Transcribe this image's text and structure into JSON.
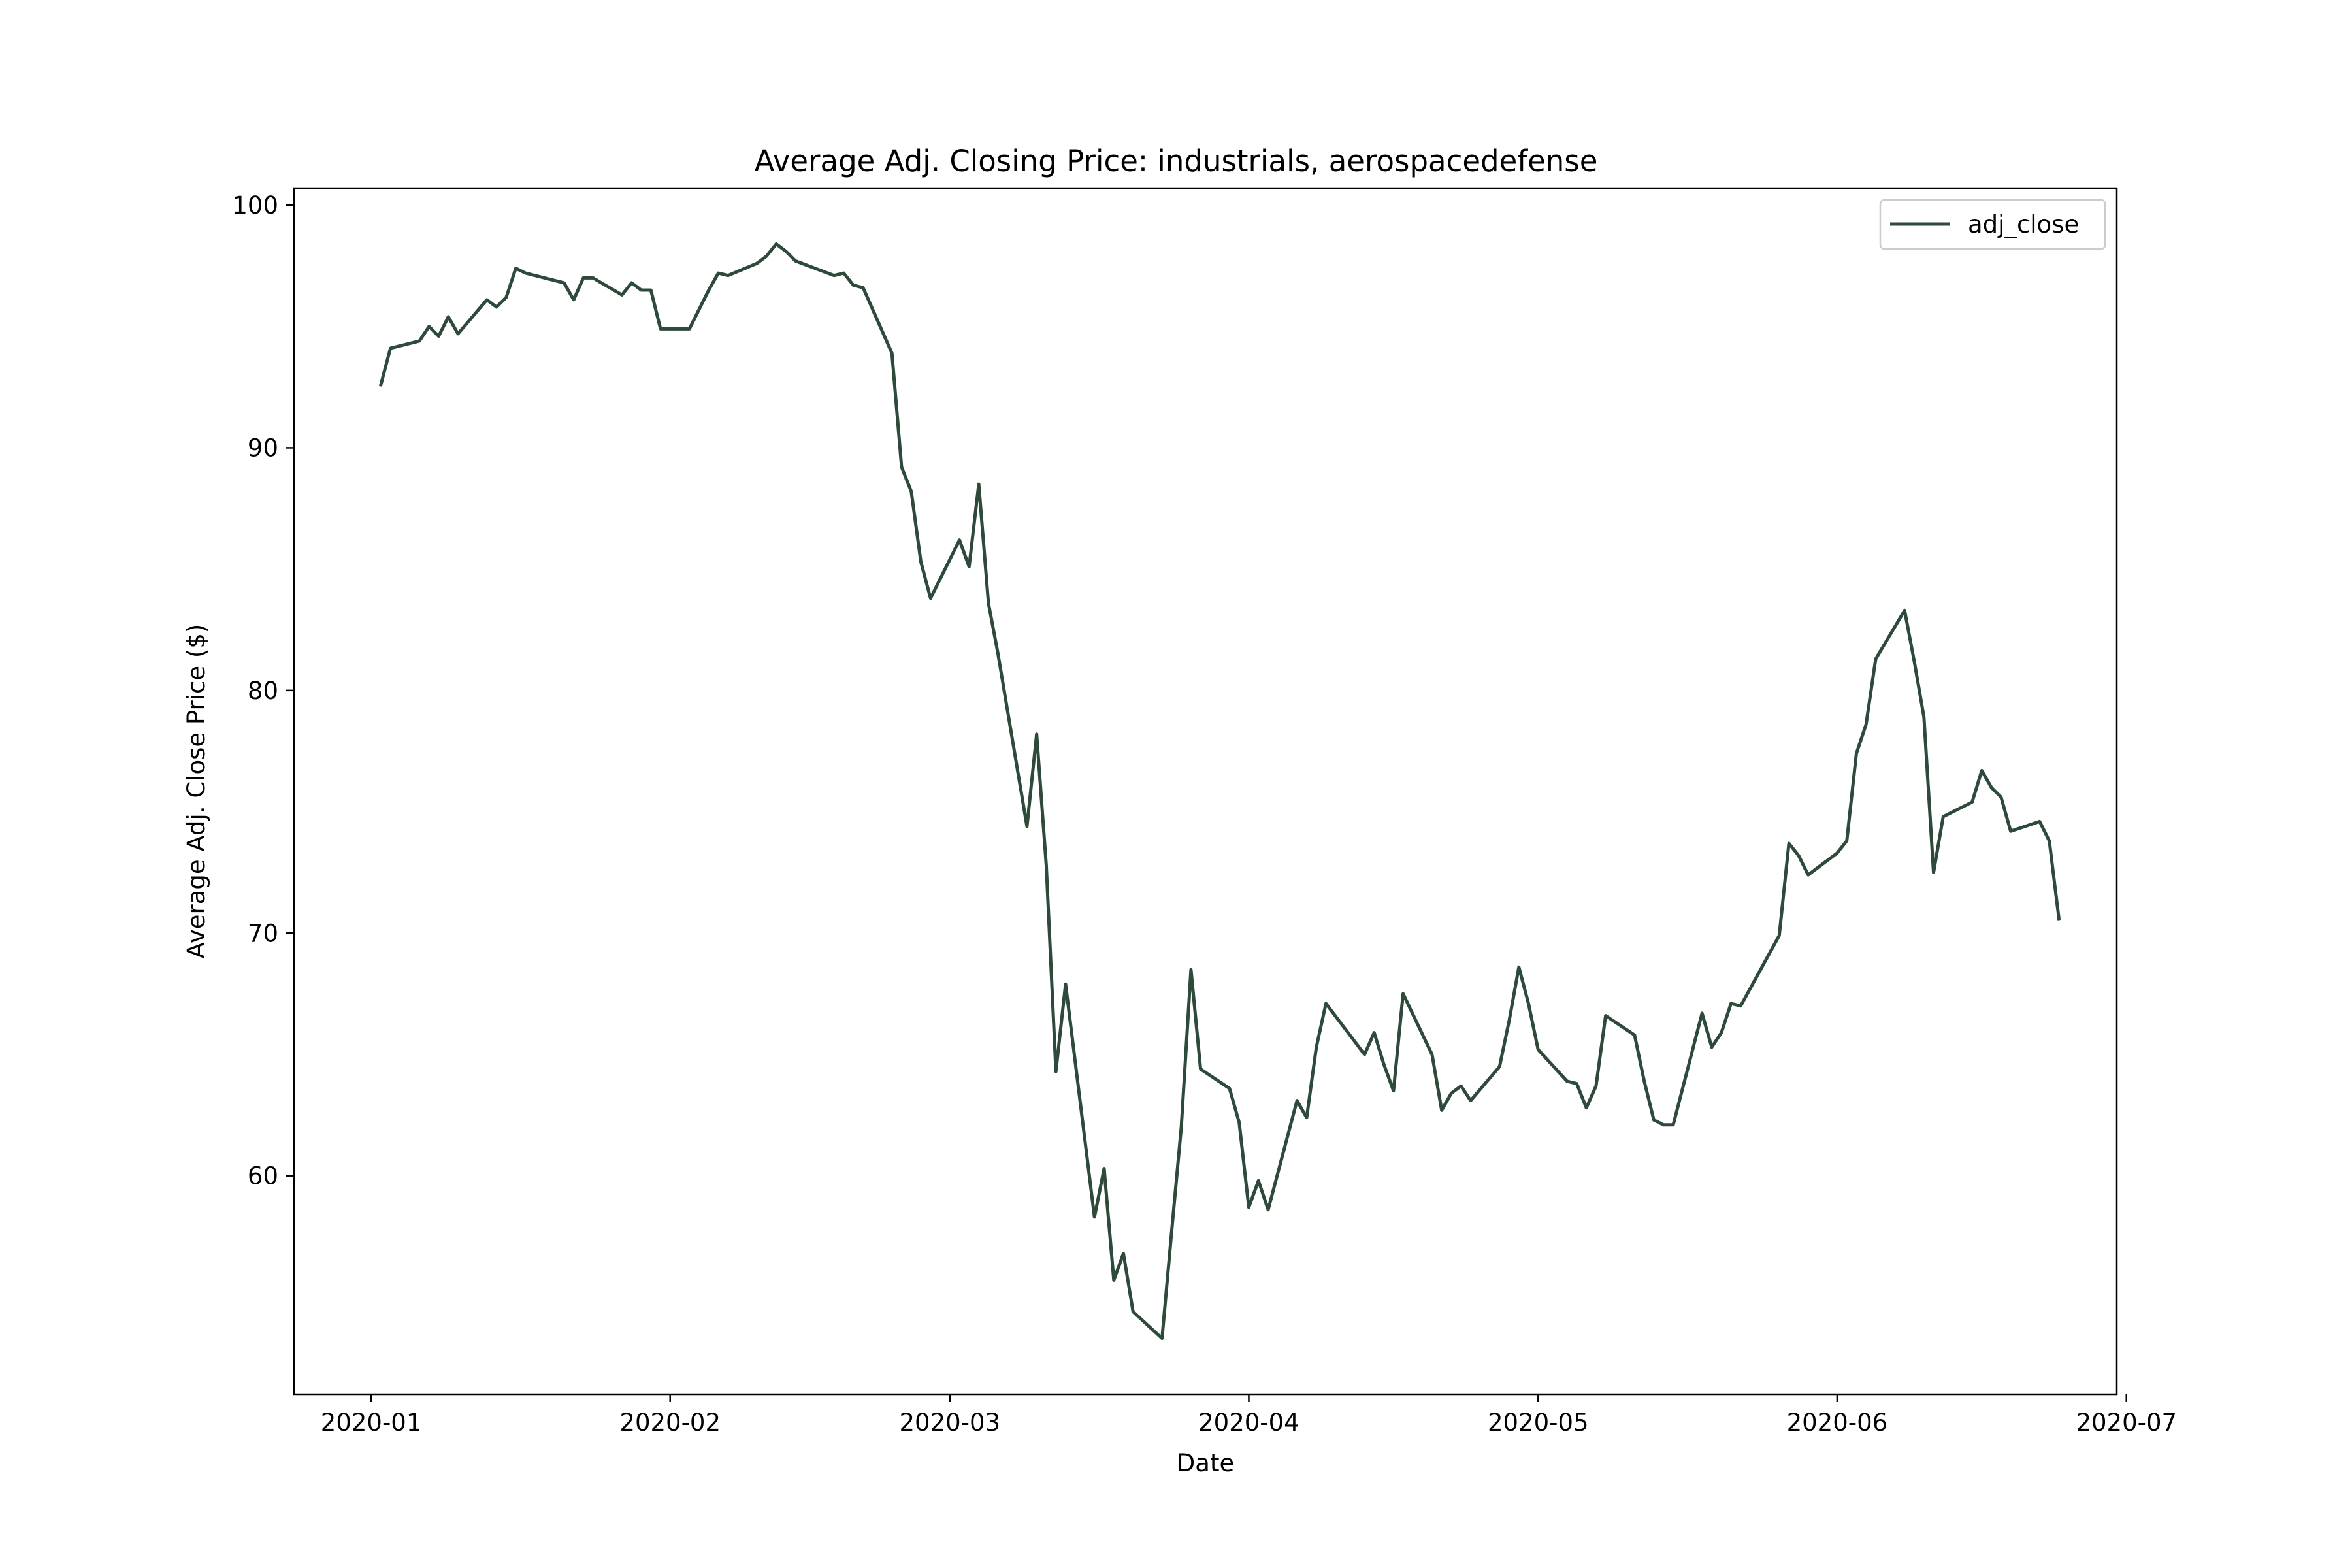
{
  "chart_data": {
    "type": "line",
    "title": "Average Adj. Closing Price: industrials, aerospacedefense",
    "xlabel": "Date",
    "ylabel": "Average Adj. Close Price ($)",
    "x_ticks": [
      "2020-01",
      "2020-02",
      "2020-03",
      "2020-04",
      "2020-05",
      "2020-06",
      "2020-07"
    ],
    "y_ticks": [
      60,
      70,
      80,
      90,
      100
    ],
    "xlim": [
      "2019-12-24",
      "2020-06-30"
    ],
    "ylim": [
      51,
      100.7
    ],
    "grid": false,
    "legend_position": "top-right",
    "series": [
      {
        "name": "adj_close",
        "color": "#2e4a3a",
        "points": [
          [
            "2020-01-02",
            92.6
          ],
          [
            "2020-01-03",
            94.1
          ],
          [
            "2020-01-06",
            94.4
          ],
          [
            "2020-01-07",
            95.0
          ],
          [
            "2020-01-08",
            94.6
          ],
          [
            "2020-01-09",
            95.4
          ],
          [
            "2020-01-10",
            94.7
          ],
          [
            "2020-01-13",
            96.1
          ],
          [
            "2020-01-14",
            95.8
          ],
          [
            "2020-01-15",
            96.2
          ],
          [
            "2020-01-16",
            97.4
          ],
          [
            "2020-01-17",
            97.2
          ],
          [
            "2020-01-21",
            96.8
          ],
          [
            "2020-01-22",
            96.1
          ],
          [
            "2020-01-23",
            97.0
          ],
          [
            "2020-01-24",
            97.0
          ],
          [
            "2020-01-27",
            96.3
          ],
          [
            "2020-01-28",
            96.8
          ],
          [
            "2020-01-29",
            96.5
          ],
          [
            "2020-01-30",
            96.5
          ],
          [
            "2020-01-31",
            94.9
          ],
          [
            "2020-02-03",
            94.9
          ],
          [
            "2020-02-04",
            95.7
          ],
          [
            "2020-02-05",
            96.5
          ],
          [
            "2020-02-06",
            97.2
          ],
          [
            "2020-02-07",
            97.1
          ],
          [
            "2020-02-10",
            97.6
          ],
          [
            "2020-02-11",
            97.9
          ],
          [
            "2020-02-12",
            98.4
          ],
          [
            "2020-02-13",
            98.1
          ],
          [
            "2020-02-14",
            97.7
          ],
          [
            "2020-02-18",
            97.1
          ],
          [
            "2020-02-19",
            97.2
          ],
          [
            "2020-02-20",
            96.7
          ],
          [
            "2020-02-21",
            96.6
          ],
          [
            "2020-02-24",
            93.9
          ],
          [
            "2020-02-25",
            89.2
          ],
          [
            "2020-02-26",
            88.2
          ],
          [
            "2020-02-27",
            85.3
          ],
          [
            "2020-02-28",
            83.8
          ],
          [
            "2020-03-02",
            86.2
          ],
          [
            "2020-03-03",
            85.1
          ],
          [
            "2020-03-04",
            88.5
          ],
          [
            "2020-03-05",
            83.6
          ],
          [
            "2020-03-06",
            81.5
          ],
          [
            "2020-03-09",
            74.4
          ],
          [
            "2020-03-10",
            78.2
          ],
          [
            "2020-03-11",
            72.8
          ],
          [
            "2020-03-12",
            64.3
          ],
          [
            "2020-03-13",
            67.9
          ],
          [
            "2020-03-16",
            58.3
          ],
          [
            "2020-03-17",
            60.3
          ],
          [
            "2020-03-18",
            55.7
          ],
          [
            "2020-03-19",
            56.8
          ],
          [
            "2020-03-20",
            54.4
          ],
          [
            "2020-03-23",
            53.3
          ],
          [
            "2020-03-24",
            57.7
          ],
          [
            "2020-03-25",
            62.0
          ],
          [
            "2020-03-26",
            68.5
          ],
          [
            "2020-03-27",
            64.4
          ],
          [
            "2020-03-30",
            63.6
          ],
          [
            "2020-03-31",
            62.2
          ],
          [
            "2020-04-01",
            58.7
          ],
          [
            "2020-04-02",
            59.8
          ],
          [
            "2020-04-03",
            58.6
          ],
          [
            "2020-04-06",
            63.1
          ],
          [
            "2020-04-07",
            62.4
          ],
          [
            "2020-04-08",
            65.3
          ],
          [
            "2020-04-09",
            67.1
          ],
          [
            "2020-04-13",
            65.0
          ],
          [
            "2020-04-14",
            65.9
          ],
          [
            "2020-04-15",
            64.6
          ],
          [
            "2020-04-16",
            63.5
          ],
          [
            "2020-04-17",
            67.5
          ],
          [
            "2020-04-20",
            65.0
          ],
          [
            "2020-04-21",
            62.7
          ],
          [
            "2020-04-22",
            63.4
          ],
          [
            "2020-04-23",
            63.7
          ],
          [
            "2020-04-24",
            63.1
          ],
          [
            "2020-04-27",
            64.5
          ],
          [
            "2020-04-28",
            66.4
          ],
          [
            "2020-04-29",
            68.6
          ],
          [
            "2020-04-30",
            67.1
          ],
          [
            "2020-05-01",
            65.2
          ],
          [
            "2020-05-04",
            63.9
          ],
          [
            "2020-05-05",
            63.8
          ],
          [
            "2020-05-06",
            62.8
          ],
          [
            "2020-05-07",
            63.7
          ],
          [
            "2020-05-08",
            66.6
          ],
          [
            "2020-05-11",
            65.8
          ],
          [
            "2020-05-12",
            63.9
          ],
          [
            "2020-05-13",
            62.3
          ],
          [
            "2020-05-14",
            62.1
          ],
          [
            "2020-05-15",
            62.1
          ],
          [
            "2020-05-18",
            66.7
          ],
          [
            "2020-05-19",
            65.3
          ],
          [
            "2020-05-20",
            65.9
          ],
          [
            "2020-05-21",
            67.1
          ],
          [
            "2020-05-22",
            67.0
          ],
          [
            "2020-05-26",
            69.9
          ],
          [
            "2020-05-27",
            73.7
          ],
          [
            "2020-05-28",
            73.2
          ],
          [
            "2020-05-29",
            72.4
          ],
          [
            "2020-06-01",
            73.3
          ],
          [
            "2020-06-02",
            73.8
          ],
          [
            "2020-06-03",
            77.4
          ],
          [
            "2020-06-04",
            78.6
          ],
          [
            "2020-06-05",
            81.3
          ],
          [
            "2020-06-08",
            83.3
          ],
          [
            "2020-06-09",
            81.2
          ],
          [
            "2020-06-10",
            78.9
          ],
          [
            "2020-06-11",
            72.5
          ],
          [
            "2020-06-12",
            74.8
          ],
          [
            "2020-06-15",
            75.4
          ],
          [
            "2020-06-16",
            76.7
          ],
          [
            "2020-06-17",
            76.0
          ],
          [
            "2020-06-18",
            75.6
          ],
          [
            "2020-06-19",
            74.2
          ],
          [
            "2020-06-22",
            74.6
          ],
          [
            "2020-06-23",
            73.8
          ],
          [
            "2020-06-24",
            70.6
          ]
        ]
      }
    ]
  }
}
